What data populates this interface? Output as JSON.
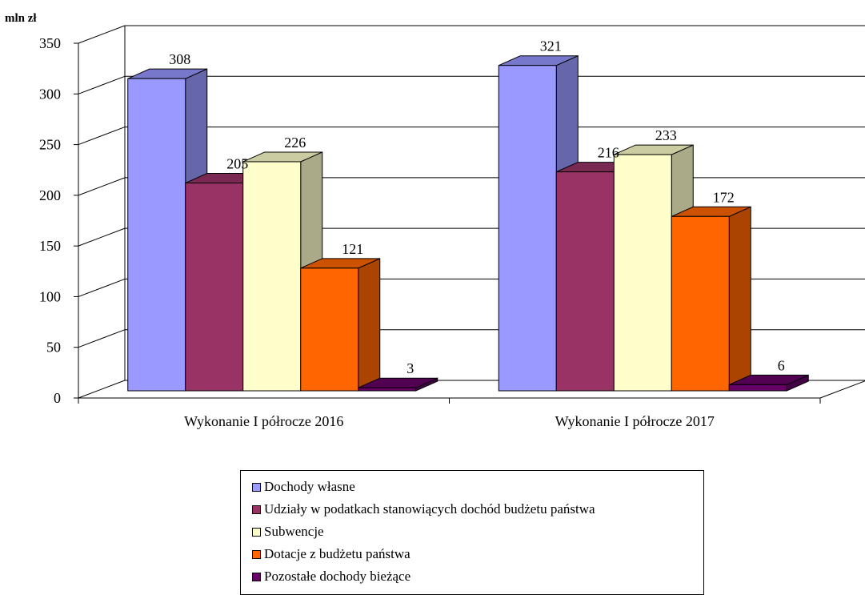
{
  "chart_data": {
    "type": "bar",
    "unit_label": "mln zł",
    "categories": [
      "Wykonanie I półrocze 2016",
      "Wykonanie I półrocze 2017"
    ],
    "series": [
      {
        "name": "Dochody własne",
        "values": [
          308,
          321
        ],
        "color": "#9999ff",
        "side_color": "#6666aa",
        "top_color": "#7777cc"
      },
      {
        "name": "Udziały w podatkach stanowiących dochód budżetu państwa",
        "values": [
          205,
          216
        ],
        "color": "#993366",
        "side_color": "#662244",
        "top_color": "#7a2952"
      },
      {
        "name": "Subwencje",
        "values": [
          226,
          233
        ],
        "color": "#ffffcc",
        "side_color": "#aaaa88",
        "top_color": "#cccca3"
      },
      {
        "name": "Dotacje z budżetu państwa",
        "values": [
          121,
          172
        ],
        "color": "#ff6600",
        "side_color": "#aa4400",
        "top_color": "#cc5200"
      },
      {
        "name": "Pozostałe dochody bieżące",
        "values": [
          3,
          6
        ],
        "color": "#660066",
        "side_color": "#440044",
        "top_color": "#520052"
      }
    ],
    "yticks": [
      0,
      50,
      100,
      150,
      200,
      250,
      300,
      350
    ],
    "ylim": [
      0,
      350
    ],
    "grid": true,
    "legend_position": "bottom"
  }
}
